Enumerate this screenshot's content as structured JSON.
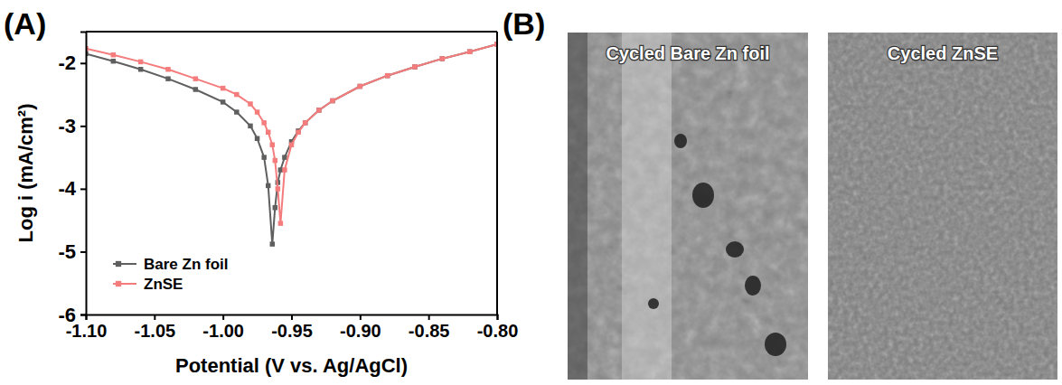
{
  "chart_data": {
    "type": "line",
    "x_label": "Potential (V vs. Ag/AgCl)",
    "y_label": "Log i (mA/cm²)",
    "xlim": [
      -1.1,
      -0.8
    ],
    "xticks": [
      {
        "value": -1.1,
        "label": "-1.10"
      },
      -1.05,
      {
        "value": -1.0,
        "label": "-1.00"
      },
      -0.95,
      {
        "value": -0.9,
        "label": "-0.90"
      },
      -0.85,
      {
        "value": -0.8,
        "label": "-0.80"
      }
    ],
    "ylim": [
      -6,
      -1.5
    ],
    "yticks": [
      -6,
      -5,
      -4,
      -3,
      -2
    ],
    "grid": false,
    "legend": "lower left",
    "x": [
      -1.1,
      -1.08,
      -1.06,
      -1.04,
      -1.02,
      -1.0,
      -0.99,
      -0.98,
      -0.975,
      -0.97,
      -0.967,
      -0.964,
      -0.962,
      -0.96,
      -0.958,
      -0.955,
      -0.95,
      -0.945,
      -0.94,
      -0.93,
      -0.92,
      -0.9,
      -0.88,
      -0.86,
      -0.84,
      -0.82,
      -0.8
    ],
    "series": [
      {
        "name": "Bare Zn foil",
        "color": "#5f5f5f",
        "marker": "square",
        "line_style": "solid",
        "values": [
          -1.85,
          -1.97,
          -2.1,
          -2.25,
          -2.42,
          -2.62,
          -2.78,
          -3.0,
          -3.2,
          -3.5,
          -3.95,
          -4.88,
          -4.3,
          -3.9,
          -3.7,
          -3.5,
          -3.25,
          -3.08,
          -2.95,
          -2.75,
          -2.6,
          -2.37,
          -2.2,
          -2.06,
          -1.93,
          -1.82,
          -1.7
        ]
      },
      {
        "name": "ZnSE",
        "color": "#f47c7c",
        "marker": "square",
        "line_style": "solid",
        "values": [
          -1.77,
          -1.87,
          -1.98,
          -2.1,
          -2.25,
          -2.4,
          -2.5,
          -2.65,
          -2.78,
          -2.95,
          -3.1,
          -3.3,
          -3.55,
          -4.0,
          -4.55,
          -3.7,
          -3.3,
          -3.1,
          -2.95,
          -2.75,
          -2.6,
          -2.37,
          -2.2,
          -2.06,
          -1.93,
          -1.82,
          -1.7
        ]
      }
    ]
  },
  "figure": {
    "panel_labels": [
      "(A)",
      "(B)"
    ],
    "photos": [
      {
        "label": "Cycled Bare Zn foil"
      },
      {
        "label": "Cycled ZnSE"
      }
    ]
  }
}
